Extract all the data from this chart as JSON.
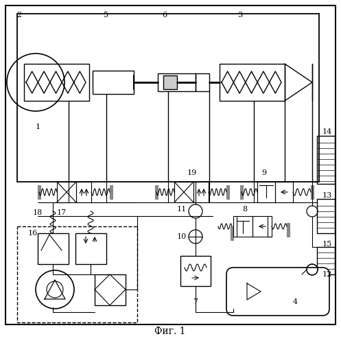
{
  "title": "Фиг. 1",
  "bg_color": "#ffffff",
  "line_color": "#000000"
}
